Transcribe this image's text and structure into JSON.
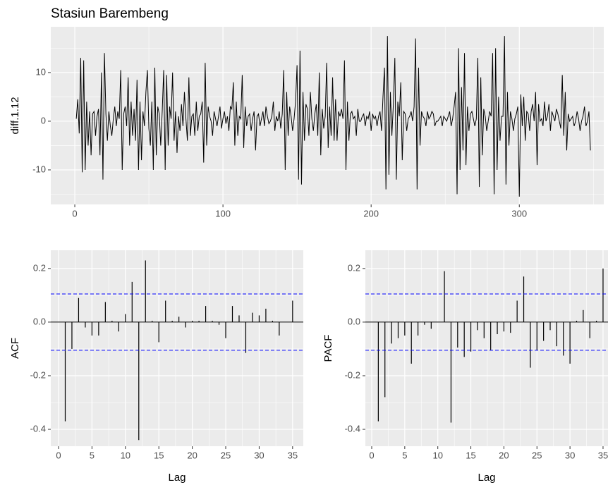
{
  "chart_data": [
    {
      "type": "line",
      "title": "Stasiun Barembeng",
      "ylabel": "diff.1.12",
      "color": "#000000",
      "grid": true,
      "xlim": [
        -16.2,
        357
      ],
      "ylim": [
        -17.1,
        19.4
      ],
      "xticks": [
        0,
        100,
        200,
        300
      ],
      "yticks": [
        -10,
        0,
        10
      ],
      "x": [
        1,
        2,
        3,
        4,
        5,
        6,
        7,
        8,
        9,
        10,
        11,
        12,
        13,
        14,
        15,
        16,
        17,
        18,
        19,
        20,
        21,
        22,
        23,
        24,
        25,
        26,
        27,
        28,
        29,
        30,
        31,
        32,
        33,
        34,
        35,
        36,
        37,
        38,
        39,
        40,
        41,
        42,
        43,
        44,
        45,
        46,
        47,
        48,
        49,
        50,
        51,
        52,
        53,
        54,
        55,
        56,
        57,
        58,
        59,
        60,
        61,
        62,
        63,
        64,
        65,
        66,
        67,
        68,
        69,
        70,
        71,
        72,
        73,
        74,
        75,
        76,
        77,
        78,
        79,
        80,
        81,
        82,
        83,
        84,
        85,
        86,
        87,
        88,
        89,
        90,
        91,
        92,
        93,
        94,
        95,
        96,
        97,
        98,
        99,
        100,
        101,
        102,
        103,
        104,
        105,
        106,
        107,
        108,
        109,
        110,
        111,
        112,
        113,
        114,
        115,
        116,
        117,
        118,
        119,
        120,
        121,
        122,
        123,
        124,
        125,
        126,
        127,
        128,
        129,
        130,
        131,
        132,
        133,
        134,
        135,
        136,
        137,
        138,
        139,
        140,
        141,
        142,
        143,
        144,
        145,
        146,
        147,
        148,
        149,
        150,
        151,
        152,
        153,
        154,
        155,
        156,
        157,
        158,
        159,
        160,
        161,
        162,
        163,
        164,
        165,
        166,
        167,
        168,
        169,
        170,
        171,
        172,
        173,
        174,
        175,
        176,
        177,
        178,
        179,
        180,
        181,
        182,
        183,
        184,
        185,
        186,
        187,
        188,
        189,
        190,
        191,
        192,
        193,
        194,
        195,
        196,
        197,
        198,
        199,
        200,
        201,
        202,
        203,
        204,
        205,
        206,
        207,
        208,
        209,
        210,
        211,
        212,
        213,
        214,
        215,
        216,
        217,
        218,
        219,
        220,
        221,
        222,
        223,
        224,
        225,
        226,
        227,
        228,
        229,
        230,
        231,
        232,
        233,
        234,
        235,
        236,
        237,
        238,
        239,
        240,
        241,
        242,
        243,
        244,
        245,
        246,
        247,
        248,
        249,
        250,
        251,
        252,
        253,
        254,
        255,
        256,
        257,
        258,
        259,
        260,
        261,
        262,
        263,
        264,
        265,
        266,
        267,
        268,
        269,
        270,
        271,
        272,
        273,
        274,
        275,
        276,
        277,
        278,
        279,
        280,
        281,
        282,
        283,
        284,
        285,
        286,
        287,
        288,
        289,
        290,
        291,
        292,
        293,
        294,
        295,
        296,
        297,
        298,
        299,
        300,
        301,
        302,
        303,
        304,
        305,
        306,
        307,
        308,
        309,
        310,
        311,
        312,
        313,
        314,
        315,
        316,
        317,
        318,
        319,
        320,
        321,
        322,
        323,
        324,
        325,
        326,
        327,
        328,
        329,
        330,
        331,
        332,
        333,
        334,
        335,
        336,
        337,
        338,
        339,
        340,
        341,
        342,
        343,
        344,
        345,
        346,
        347,
        348
      ],
      "values": [
        0.5,
        4.5,
        -2.5,
        13,
        -10.5,
        12.5,
        -10,
        4,
        -5,
        2,
        -7,
        1.5,
        2,
        -3,
        1,
        2.5,
        -7,
        10,
        -12,
        14,
        1.5,
        -4,
        2,
        -1,
        -3,
        0.5,
        3,
        -1,
        2,
        0.5,
        10.5,
        -10,
        1.5,
        3,
        -1,
        9,
        -5,
        4,
        -3,
        2.5,
        -4,
        8.5,
        -10,
        4,
        -8,
        2,
        -1,
        6,
        10.5,
        -1.5,
        -5,
        4,
        -10,
        11,
        -7,
        3,
        1.5,
        -5,
        2,
        10.5,
        -10,
        9.5,
        -5,
        3,
        0.5,
        10,
        -4,
        2,
        -6.5,
        1,
        -2,
        3.5,
        -1,
        6,
        0.5,
        -4,
        9,
        -3,
        1,
        1.5,
        -3,
        4,
        -2,
        1,
        1.5,
        4,
        -8.5,
        12,
        -5,
        3,
        1,
        0,
        -3,
        2,
        0.5,
        -1,
        1,
        3,
        -1.5,
        0.5,
        2,
        -0.5,
        1,
        -2,
        3,
        2.5,
        8,
        -5,
        4,
        -3,
        1,
        0.5,
        9.5,
        -5.5,
        3,
        -1,
        1,
        1.5,
        -2,
        0.5,
        2,
        -6,
        1,
        1.5,
        -1,
        0.5,
        2,
        -1,
        3,
        1,
        -0.5,
        0,
        1,
        4,
        -2,
        1,
        0,
        2,
        -1.5,
        1.5,
        10.5,
        -10,
        6,
        -3,
        3,
        1,
        -2,
        0.5,
        4,
        11.5,
        -12,
        14.5,
        -13,
        6,
        -4,
        3.5,
        2.5,
        -3,
        6,
        0.5,
        -2,
        1.5,
        3.5,
        -3,
        10,
        -7,
        2.5,
        -1.5,
        1,
        12,
        -5.5,
        3,
        -3,
        9,
        -4,
        4.5,
        -4,
        2,
        1,
        2.5,
        0.5,
        12.5,
        -10,
        4,
        -4,
        1.5,
        2,
        0.5,
        1,
        -3,
        2.5,
        0,
        0,
        1,
        1.5,
        -1,
        1,
        0.5,
        2,
        -2,
        1.5,
        0.5,
        1,
        -1,
        1,
        2,
        -2,
        5,
        11,
        -14,
        17.5,
        -11,
        6,
        -3,
        3.5,
        13,
        -12,
        4,
        1,
        8,
        -8,
        2,
        1.5,
        -2,
        0.5,
        1,
        2,
        0,
        3,
        17,
        -14,
        11,
        -5,
        2,
        1,
        0.5,
        -1,
        2,
        0.5,
        1,
        2,
        1.5,
        -1,
        0,
        0,
        0.5,
        1,
        -1,
        1,
        0.5,
        0,
        1,
        2,
        -1,
        0.5,
        3,
        6,
        -15,
        15,
        -10,
        7,
        -6,
        14,
        -9,
        3,
        -2,
        1.5,
        2,
        0.5,
        -1,
        0.5,
        13,
        -13.5,
        9,
        -7,
        2.5,
        1,
        -2,
        0,
        2,
        1,
        14,
        -15,
        15,
        -10,
        5,
        -4,
        1,
        1,
        17.5,
        -13,
        6,
        -5,
        2,
        0.5,
        -2,
        0.5,
        1.5,
        3,
        -15.5,
        5.5,
        -1,
        5,
        -4,
        2,
        1.5,
        -2,
        2,
        3.5,
        0,
        6,
        -9,
        3.5,
        0,
        0.5,
        -1,
        4,
        0,
        1,
        3.5,
        -2,
        2,
        1,
        0,
        2.5,
        1.5,
        0,
        -1.5,
        9.5,
        -3,
        6,
        -6,
        1.5,
        0,
        0.5,
        1,
        -1,
        0,
        2,
        0.5,
        -2,
        0,
        1,
        3,
        -1,
        0,
        2,
        -6
      ]
    },
    {
      "type": "acf",
      "xlabel": "Lag",
      "ylabel": "ACF",
      "color": "#000000",
      "grid": true,
      "ci": [
        -0.105,
        0.105
      ],
      "ci_color": "#0000ff",
      "xlim": [
        -1.16,
        36.6
      ],
      "ylim": [
        -0.463,
        0.268
      ],
      "xticks": [
        0,
        5,
        10,
        15,
        20,
        25,
        30,
        35
      ],
      "yticks": [
        -0.4,
        -0.2,
        {
          "value": 0,
          "label": "0.0"
        },
        0.2
      ],
      "x": [
        1,
        2,
        3,
        4,
        5,
        6,
        7,
        8,
        9,
        10,
        11,
        12,
        13,
        14,
        15,
        16,
        17,
        18,
        19,
        20,
        21,
        22,
        23,
        24,
        25,
        26,
        27,
        28,
        29,
        30,
        31,
        32,
        33,
        34,
        35
      ],
      "values": [
        -0.37,
        -0.1,
        0.09,
        -0.02,
        -0.05,
        -0.05,
        0.075,
        0.005,
        -0.035,
        0.03,
        0.15,
        -0.44,
        0.23,
        0.005,
        -0.075,
        0.08,
        0.005,
        0.02,
        -0.02,
        0.005,
        0.005,
        0.06,
        0.005,
        -0.01,
        -0.06,
        0.06,
        0.025,
        -0.115,
        0.035,
        0.025,
        0.05,
        0.005,
        -0.05,
        0,
        0.08
      ]
    },
    {
      "type": "acf",
      "xlabel": "Lag",
      "ylabel": "PACF",
      "color": "#000000",
      "grid": true,
      "ci": [
        -0.105,
        0.105
      ],
      "ci_color": "#0000ff",
      "xlim": [
        -0.96,
        35.75
      ],
      "ylim": [
        -0.463,
        0.268
      ],
      "xticks": [
        0,
        5,
        10,
        15,
        20,
        25,
        30,
        35
      ],
      "yticks": [
        -0.4,
        -0.2,
        {
          "value": 0,
          "label": "0.0"
        },
        0.2
      ],
      "x": [
        1,
        2,
        3,
        4,
        5,
        6,
        7,
        8,
        9,
        10,
        11,
        12,
        13,
        14,
        15,
        16,
        17,
        18,
        19,
        20,
        21,
        22,
        23,
        24,
        25,
        26,
        27,
        28,
        29,
        30,
        31,
        32,
        33,
        34,
        35
      ],
      "values": [
        -0.37,
        -0.28,
        -0.08,
        -0.06,
        -0.05,
        -0.155,
        -0.05,
        -0.01,
        -0.025,
        0,
        0.19,
        -0.375,
        -0.095,
        -0.13,
        -0.11,
        -0.03,
        -0.06,
        -0.105,
        -0.045,
        -0.035,
        -0.04,
        0.08,
        0.17,
        -0.17,
        -0.105,
        -0.07,
        -0.03,
        -0.09,
        -0.125,
        -0.155,
        0.005,
        0.045,
        -0.06,
        0.005,
        0.2
      ]
    }
  ]
}
